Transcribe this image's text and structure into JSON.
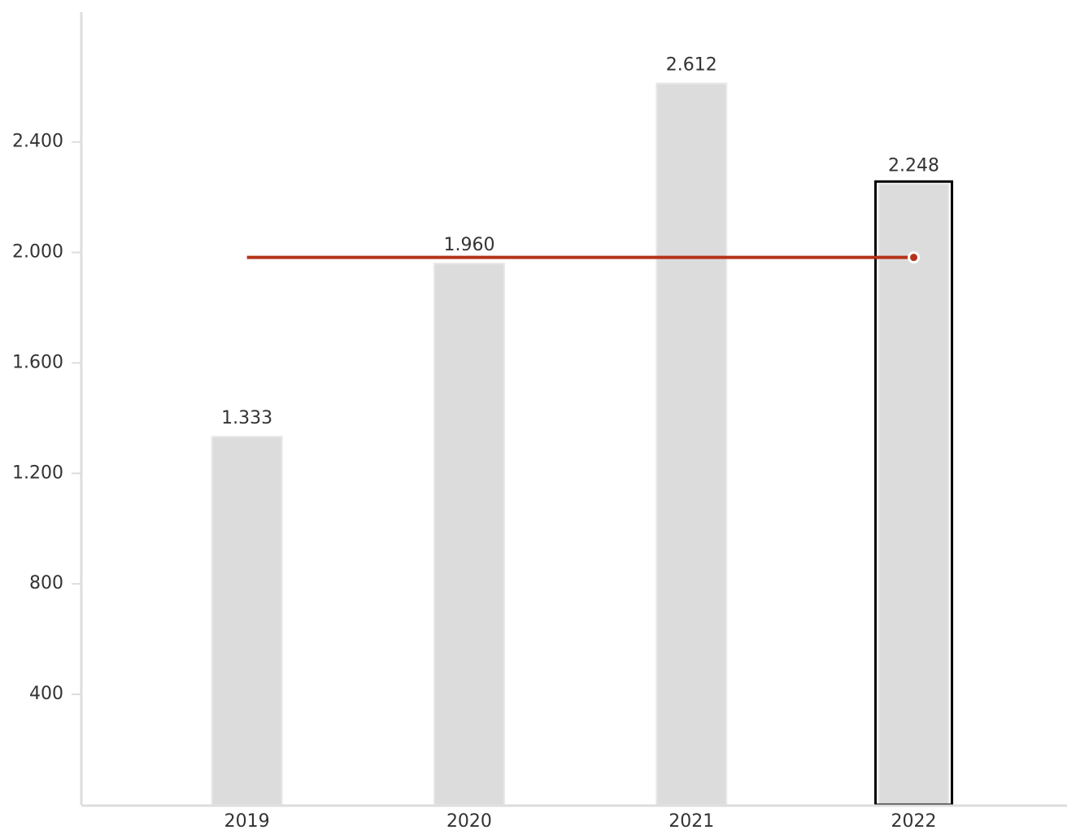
{
  "chart_data": {
    "type": "bar",
    "categories": [
      "2019",
      "2020",
      "2021",
      "2022"
    ],
    "values": [
      1333,
      1960,
      2612,
      2248
    ],
    "value_labels": [
      "1.333",
      "1.960",
      "2.612",
      "2.248"
    ],
    "color": "#dcdcdc",
    "highlight_index": 3,
    "line": {
      "values": [
        1982,
        1982,
        1982,
        1982
      ],
      "color": "#b5321a"
    },
    "ylim": [
      0,
      2870
    ],
    "yticks": [
      400,
      800,
      {
        "value": 1200,
        "label": "1.200"
      },
      {
        "value": 1600,
        "label": "1.600"
      },
      {
        "value": 2000,
        "label": "2.000"
      },
      {
        "value": 2400,
        "label": "2.400"
      }
    ]
  }
}
